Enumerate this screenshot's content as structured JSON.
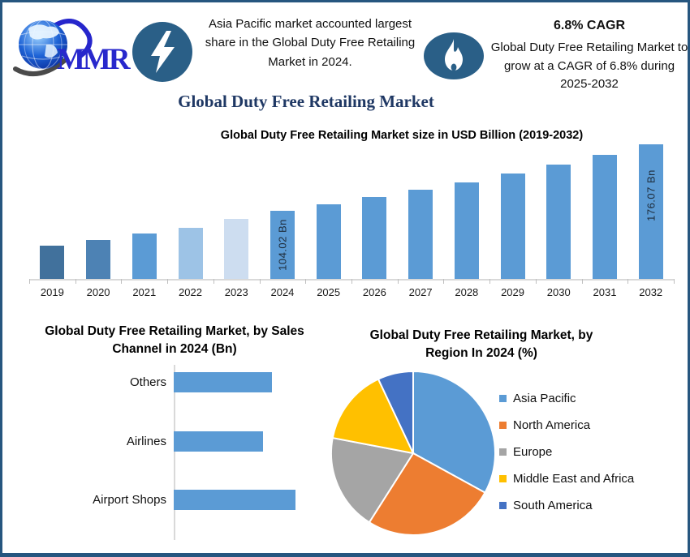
{
  "brand": {
    "logo_text": "MMR"
  },
  "header": {
    "highlight": "Asia Pacific market accounted largest share in the Global Duty Free Retailing Market in 2024.",
    "cagr_value": "6.8% CAGR",
    "cagr_text": "Global Duty Free Retailing Market to grow at a CAGR of 6.8% during 2025-2032",
    "icons": {
      "left": "lightning-bolt-icon",
      "right": "flame-icon"
    }
  },
  "page_title": "Global Duty Free Retailing Market",
  "colors": {
    "frame_border": "#26567f",
    "icon_badge": "#2a5f87",
    "title_navy": "#1f3864",
    "primary_bar_blue": "#5b9bd5",
    "axis_gray": "#d9d9d9"
  },
  "chart_data": [
    {
      "type": "bar",
      "title": "Global Duty Free Retailing Market size in USD Billion (2019-2032)",
      "categories": [
        "2019",
        "2020",
        "2021",
        "2022",
        "2023",
        "2024",
        "2025",
        "2026",
        "2027",
        "2028",
        "2029",
        "2030",
        "2031",
        "2032"
      ],
      "values": [
        66,
        72,
        79,
        86,
        95,
        104.02,
        111.1,
        118.7,
        126.7,
        135.3,
        144.5,
        154.4,
        164.9,
        176.07
      ],
      "unit": "USD Billion",
      "ylim": [
        30,
        180
      ],
      "grid": false,
      "bar_colors": [
        "#41719c",
        "#4d82b4",
        "#5b9bd5",
        "#9dc3e6",
        "#cdddf0",
        "#5b9bd5",
        "#5b9bd5",
        "#5b9bd5",
        "#5b9bd5",
        "#5b9bd5",
        "#5b9bd5",
        "#5b9bd5",
        "#5b9bd5",
        "#5b9bd5"
      ],
      "annotations": [
        {
          "category": "2024",
          "label": "104.02 Bn",
          "v_offset": 0.5
        },
        {
          "category": "2032",
          "label": "176.07 Bn",
          "v_offset": 0.38
        }
      ]
    },
    {
      "type": "bar",
      "orientation": "horizontal",
      "title": "Global Duty Free Retailing Market, by Sales Channel in 2024 (Bn)",
      "categories": [
        "Others",
        "Airlines",
        "Airport Shops"
      ],
      "values": [
        33,
        30,
        41
      ],
      "unit": "Bn",
      "bar_color": "#5b9bd5"
    },
    {
      "type": "pie",
      "title": "Global Duty Free Retailing Market, by Region In 2024 (%)",
      "labels": [
        "Asia Pacific",
        "North America",
        "Europe",
        "Middle East and Africa",
        "South America"
      ],
      "values": [
        33,
        26,
        19,
        15,
        7
      ],
      "unit": "%",
      "colors": [
        "#5b9bd5",
        "#ed7d31",
        "#a5a5a5",
        "#ffc000",
        "#4472c4"
      ],
      "legend_position": "right"
    }
  ]
}
